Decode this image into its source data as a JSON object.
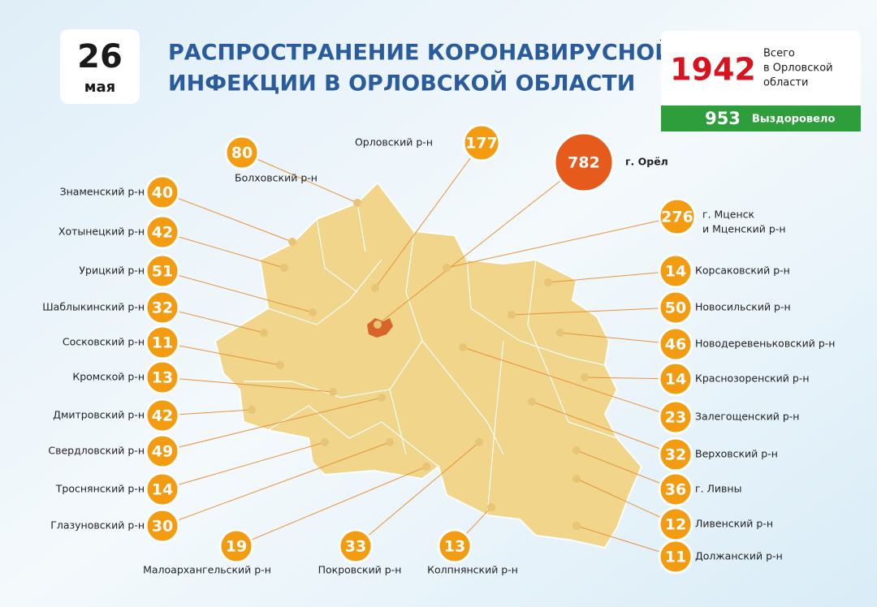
{
  "header": {
    "date_day": "26",
    "date_month": "мая",
    "title_lines": [
      "РАСПРОСТРАНЕНИЕ КОРОНАВИРУСНОЙ",
      "ИНФЕКЦИИ В ОРЛОВСКОЙ ОБЛАСТИ"
    ]
  },
  "totals": {
    "total": 1942,
    "total_label_lines": [
      "Всего",
      "в Орловской",
      "области"
    ],
    "recovered": 953,
    "recovered_label": "Выздоровело"
  },
  "districts": [
    {
      "label_lines": [
        "Знаменский р-н"
      ],
      "value": 40
    },
    {
      "label_lines": [
        "Хотынецкий р-н"
      ],
      "value": 42
    },
    {
      "label_lines": [
        "Урицкий р-н"
      ],
      "value": 51
    },
    {
      "label_lines": [
        "Шаблыкинский р-н"
      ],
      "value": 32
    },
    {
      "label_lines": [
        "Сосковский р-н"
      ],
      "value": 11
    },
    {
      "label_lines": [
        "Кромской р-н"
      ],
      "value": 13
    },
    {
      "label_lines": [
        "Дмитровский р-н"
      ],
      "value": 42
    },
    {
      "label_lines": [
        "Свердловский р-н"
      ],
      "value": 49
    },
    {
      "label_lines": [
        "Троснянский р-н"
      ],
      "value": 14
    },
    {
      "label_lines": [
        "Глазуновский р-н"
      ],
      "value": 30
    },
    {
      "label_lines": [
        "Малоархангельский р-н"
      ],
      "value": 19
    },
    {
      "label_lines": [
        "Покровский р-н"
      ],
      "value": 33
    },
    {
      "label_lines": [
        "Колпнянский р-н"
      ],
      "value": 13
    },
    {
      "label_lines": [
        "Корсаковский р-н"
      ],
      "value": 14
    },
    {
      "label_lines": [
        "Новосильский р-н"
      ],
      "value": 50
    },
    {
      "label_lines": [
        "Новодеревеньковский р-н"
      ],
      "value": 46
    },
    {
      "label_lines": [
        "Краснозоренский р-н"
      ],
      "value": 14
    },
    {
      "label_lines": [
        "Залегощенский р-н"
      ],
      "value": 23
    },
    {
      "label_lines": [
        "Верховский р-н"
      ],
      "value": 32
    },
    {
      "label_lines": [
        "г. Ливны"
      ],
      "value": 36
    },
    {
      "label_lines": [
        "Ливенский р-н"
      ],
      "value": 12
    },
    {
      "label_lines": [
        "Должанский р-н"
      ],
      "value": 11
    },
    {
      "label_lines": [
        "Болховский р-н"
      ],
      "value": 80
    },
    {
      "label_lines": [
        "Орловский р-н"
      ],
      "value": 177
    },
    {
      "label_lines": [
        "г. Орёл"
      ],
      "value": 782
    },
    {
      "label_lines": [
        "г. Мценск",
        "и Мценский р-н"
      ],
      "value": 276
    }
  ]
}
